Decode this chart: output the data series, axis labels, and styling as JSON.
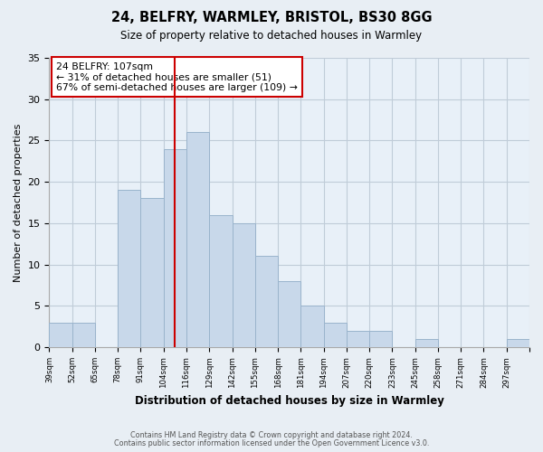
{
  "title": "24, BELFRY, WARMLEY, BRISTOL, BS30 8GG",
  "subtitle": "Size of property relative to detached houses in Warmley",
  "xlabel": "Distribution of detached houses by size in Warmley",
  "ylabel": "Number of detached properties",
  "bin_labels": [
    "39sqm",
    "52sqm",
    "65sqm",
    "78sqm",
    "91sqm",
    "104sqm",
    "116sqm",
    "129sqm",
    "142sqm",
    "155sqm",
    "168sqm",
    "181sqm",
    "194sqm",
    "207sqm",
    "220sqm",
    "233sqm",
    "245sqm",
    "258sqm",
    "271sqm",
    "284sqm",
    "297sqm"
  ],
  "counts": [
    3,
    3,
    0,
    19,
    18,
    24,
    26,
    16,
    15,
    11,
    8,
    5,
    3,
    2,
    2,
    0,
    1,
    0,
    0,
    0,
    1
  ],
  "bar_color": "#c8d8ea",
  "bar_edge_color": "#9ab4cc",
  "property_bin_index": 5,
  "property_line_color": "#cc0000",
  "annotation_text": "24 BELFRY: 107sqm\n← 31% of detached houses are smaller (51)\n67% of semi-detached houses are larger (109) →",
  "annotation_box_edge": "#cc0000",
  "ylim": [
    0,
    35
  ],
  "yticks": [
    0,
    5,
    10,
    15,
    20,
    25,
    30,
    35
  ],
  "bg_color": "#e8eef4",
  "plot_bg_color": "#e8f0f8",
  "footer_line1": "Contains HM Land Registry data © Crown copyright and database right 2024.",
  "footer_line2": "Contains public sector information licensed under the Open Government Licence v3.0.",
  "grid_color": "#c0ccd8"
}
